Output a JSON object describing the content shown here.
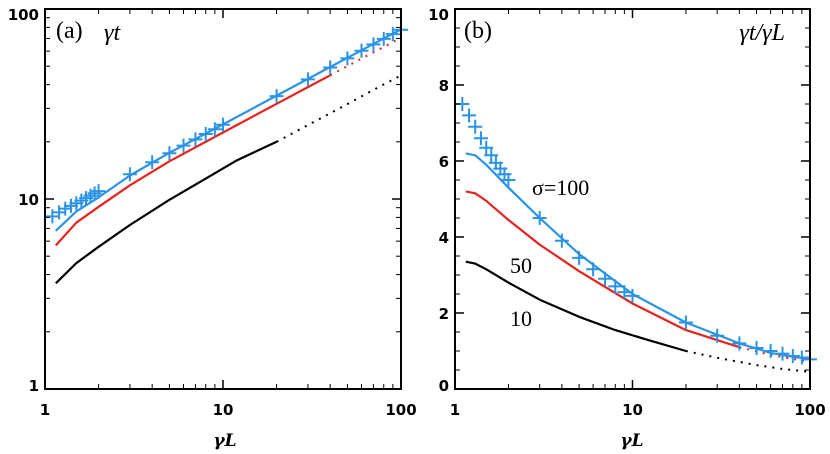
{
  "chart_data": [
    {
      "type": "line",
      "panel_label": "(a)",
      "title": "γt",
      "xlabel": "γL",
      "ylabel": "",
      "xscale": "log",
      "yscale": "log",
      "xlim": [
        1,
        100
      ],
      "ylim": [
        1,
        100
      ],
      "xticks": [
        1,
        10,
        100
      ],
      "xtick_labels": [
        "1",
        "10",
        "100"
      ],
      "yticks": [
        1,
        10,
        100
      ],
      "ytick_labels": [
        "1",
        "10",
        "100"
      ],
      "series": [
        {
          "name": "σ=10",
          "color": "#000000",
          "x": [
            1.15,
            1.5,
            2,
            3,
            5,
            8,
            12,
            20
          ],
          "y": [
            3.6,
            4.6,
            5.6,
            7.3,
            9.9,
            12.8,
            16.0,
            20.0
          ],
          "dotted_x": [
            20,
            30,
            50,
            70,
            100
          ],
          "dotted_y": [
            20.0,
            24.5,
            31.6,
            37.5,
            44.7
          ]
        },
        {
          "name": "σ=50",
          "color": "#e8231d",
          "x": [
            1.15,
            1.5,
            2,
            3,
            5,
            10,
            20,
            30,
            40
          ],
          "y": [
            5.7,
            7.5,
            9.1,
            11.8,
            15.8,
            22.4,
            31.7,
            38.8,
            44.8
          ],
          "dotted_x": [
            40,
            60,
            80,
            100
          ],
          "dotted_y": [
            44.8,
            54.8,
            63.2,
            70.7
          ]
        },
        {
          "name": "σ=100",
          "color": "#2b93e6",
          "x": [
            1.15,
            1.5,
            2,
            3,
            5,
            10,
            20,
            40,
            60,
            80,
            100
          ],
          "y": [
            6.8,
            8.6,
            10.2,
            13.3,
            17.5,
            24.7,
            35.0,
            49.5,
            60.6,
            70.0,
            78.0
          ]
        },
        {
          "name": "σ=100 markers",
          "color": "#2b93e6",
          "markers": "plus",
          "x": [
            1.1,
            1.2,
            1.3,
            1.4,
            1.5,
            1.6,
            1.7,
            1.8,
            1.9,
            2,
            3,
            4,
            5,
            6,
            7,
            8,
            9,
            10,
            20,
            30,
            40,
            50,
            60,
            70,
            80,
            90,
            100
          ],
          "y": [
            8.1,
            8.5,
            8.9,
            9.2,
            9.5,
            9.8,
            10.1,
            10.4,
            10.7,
            11.0,
            13.5,
            15.6,
            17.4,
            19.1,
            20.6,
            22.0,
            23.3,
            24.6,
            34.8,
            42.6,
            49.2,
            55.0,
            60.3,
            65.1,
            69.6,
            73.8,
            77.8
          ]
        }
      ]
    },
    {
      "type": "line",
      "panel_label": "(b)",
      "title": "γt/γL",
      "xlabel": "γL",
      "ylabel": "",
      "xscale": "log",
      "yscale": "linear",
      "xlim": [
        1,
        100
      ],
      "ylim": [
        0,
        10
      ],
      "xticks": [
        1,
        10,
        100
      ],
      "xtick_labels": [
        "1",
        "10",
        "100"
      ],
      "yticks": [
        0,
        2,
        4,
        6,
        8,
        10
      ],
      "ytick_labels": [
        "0",
        "2",
        "4",
        "6",
        "8",
        "10"
      ],
      "annotations": [
        "σ=100",
        "50",
        "10"
      ],
      "series": [
        {
          "name": "10",
          "color": "#000000",
          "x": [
            1.15,
            1.3,
            1.5,
            2,
            3,
            5,
            8,
            12,
            20
          ],
          "y": [
            3.35,
            3.3,
            3.15,
            2.8,
            2.35,
            1.9,
            1.55,
            1.3,
            1.0
          ],
          "dotted_x": [
            20,
            30,
            50,
            70,
            100
          ],
          "dotted_y": [
            1.0,
            0.82,
            0.63,
            0.53,
            0.45
          ]
        },
        {
          "name": "50",
          "color": "#e8231d",
          "x": [
            1.15,
            1.3,
            1.5,
            2,
            3,
            5,
            10,
            20,
            40
          ],
          "y": [
            5.2,
            5.15,
            4.95,
            4.45,
            3.8,
            3.1,
            2.25,
            1.55,
            1.1
          ],
          "dotted_x": [
            40,
            60,
            80,
            100
          ],
          "dotted_y": [
            1.1,
            0.9,
            0.79,
            0.71
          ]
        },
        {
          "name": "σ=100",
          "color": "#2b93e6",
          "x": [
            1.15,
            1.3,
            1.5,
            2,
            3,
            5,
            10,
            20,
            40,
            60,
            80,
            100
          ],
          "y": [
            6.2,
            6.15,
            5.9,
            5.3,
            4.5,
            3.55,
            2.5,
            1.75,
            1.2,
            0.95,
            0.85,
            0.78
          ]
        },
        {
          "name": "σ=100 markers",
          "color": "#2b93e6",
          "markers": "plus",
          "x": [
            1.1,
            1.2,
            1.3,
            1.4,
            1.5,
            1.6,
            1.7,
            1.8,
            1.9,
            2,
            3,
            4,
            5,
            6,
            7,
            8,
            9,
            10,
            20,
            30,
            40,
            50,
            60,
            70,
            80,
            90,
            100
          ],
          "y": [
            7.5,
            7.2,
            6.9,
            6.6,
            6.35,
            6.15,
            5.95,
            5.8,
            5.65,
            5.5,
            4.5,
            3.9,
            3.45,
            3.15,
            2.9,
            2.7,
            2.55,
            2.45,
            1.75,
            1.4,
            1.2,
            1.08,
            1.0,
            0.93,
            0.87,
            0.83,
            0.78
          ]
        }
      ]
    }
  ]
}
